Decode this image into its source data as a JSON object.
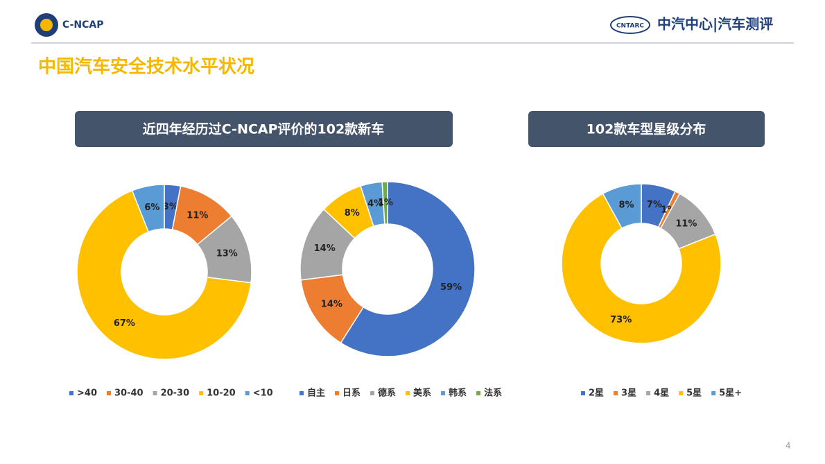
{
  "header": {
    "logo_left": "C-NCAP",
    "logo_right_badge": "CNTARC",
    "logo_right": "中汽中心|汽车测评"
  },
  "title": "中国汽车安全技术水平状况",
  "panels": [
    {
      "title": "近四年经历过C-NCAP评价的102款新车"
    },
    {
      "title": "102款车型星级分布"
    }
  ],
  "page_number": "4",
  "chart_data": [
    {
      "type": "pie",
      "categories": [
        ">40",
        "30-40",
        "20-30",
        "10-20",
        "<10"
      ],
      "values": [
        3,
        11,
        13,
        67,
        6
      ],
      "value_labels": [
        "3%",
        "11%",
        "13%",
        "67%",
        "6%"
      ],
      "colors": [
        "#4472c4",
        "#ed7d31",
        "#a5a5a5",
        "#ffc000",
        "#5b9bd5"
      ]
    },
    {
      "type": "pie",
      "categories": [
        "自主",
        "日系",
        "德系",
        "美系",
        "韩系",
        "法系"
      ],
      "values": [
        59,
        14,
        14,
        8,
        4,
        1
      ],
      "value_labels": [
        "59%",
        "14%",
        "14%",
        "8%",
        "4%",
        "1%"
      ],
      "colors": [
        "#4472c4",
        "#ed7d31",
        "#a5a5a5",
        "#ffc000",
        "#5b9bd5",
        "#70ad47"
      ]
    },
    {
      "type": "pie",
      "categories": [
        "2星",
        "3星",
        "4星",
        "5星",
        "5星+"
      ],
      "values": [
        7,
        1,
        11,
        73,
        8
      ],
      "value_labels": [
        "7%",
        "1%",
        "11%",
        "73%",
        "8%"
      ],
      "colors": [
        "#4472c4",
        "#ed7d31",
        "#a5a5a5",
        "#ffc000",
        "#5b9bd5"
      ]
    }
  ]
}
